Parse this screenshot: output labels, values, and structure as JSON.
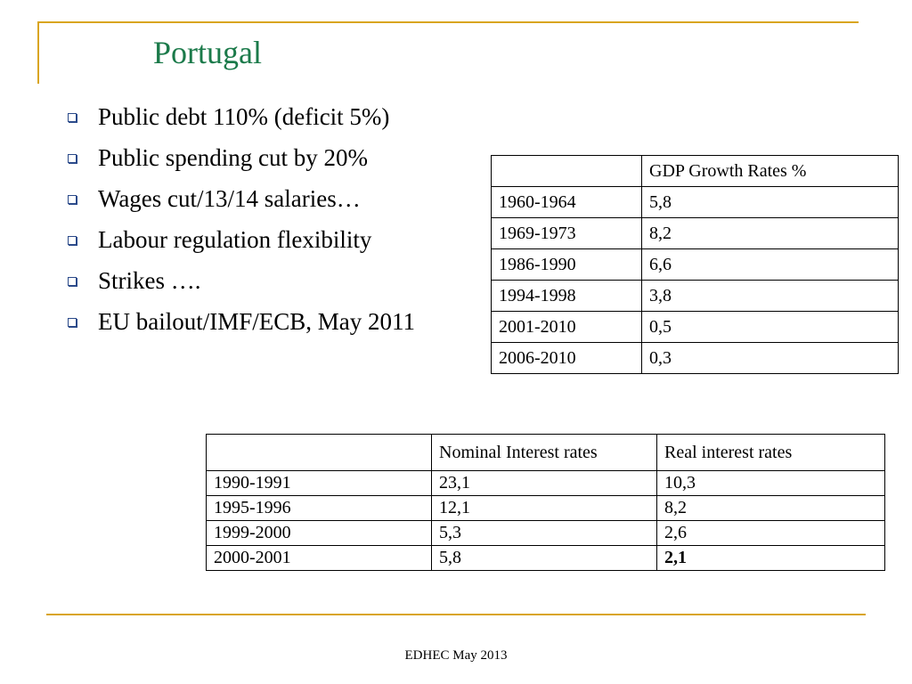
{
  "slide": {
    "title": "Portugal",
    "footer": "EDHEC May 2013"
  },
  "bullets": [
    "Public debt 110% (deficit 5%)",
    "Public spending cut by 20%",
    "Wages cut/13/14 salaries…",
    "Labour regulation flexibility",
    "Strikes ….",
    "EU bailout/IMF/ECB, May 2011"
  ],
  "gdp_table": {
    "header": [
      "",
      "GDP Growth Rates %"
    ],
    "rows": [
      [
        "1960-1964",
        "5,8"
      ],
      [
        "1969-1973",
        "8,2"
      ],
      [
        "1986-1990",
        "6,6"
      ],
      [
        "1994-1998",
        "3,8"
      ],
      [
        "2001-2010",
        "0,5"
      ],
      [
        "2006-2010",
        "0,3"
      ]
    ]
  },
  "interest_table": {
    "header": [
      "",
      "Nominal Interest rates",
      "Real interest rates"
    ],
    "rows": [
      [
        "1990-1991",
        "23,1",
        "10,3"
      ],
      [
        "1995-1996",
        "12,1",
        "8,2"
      ],
      [
        "1999-2000",
        "5,3",
        "2,6"
      ],
      [
        "2000-2001",
        "5,8",
        "2,1"
      ]
    ]
  },
  "colors": {
    "accent": "#d9a520",
    "title": "#1b7a4a",
    "bullet": "#2b4a8a"
  }
}
